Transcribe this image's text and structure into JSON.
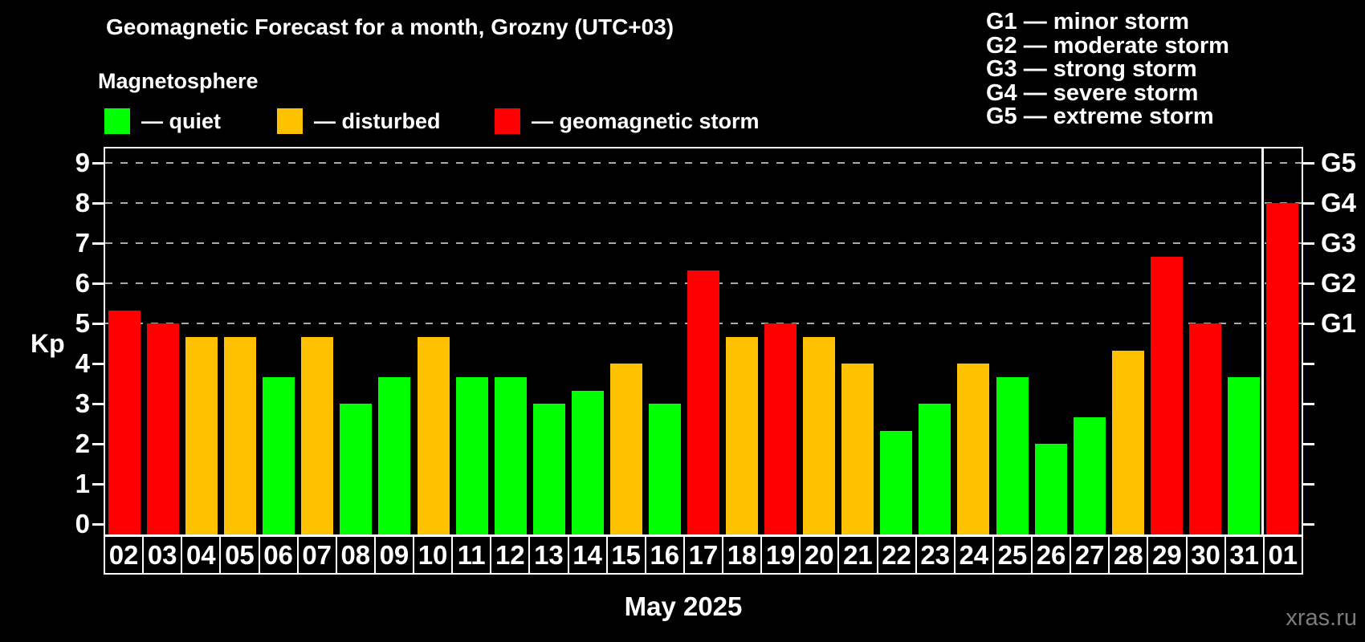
{
  "header": {
    "title": "Geomagnetic Forecast for a month, Grozny (UTC+03)",
    "subtitle": "Magnetosphere"
  },
  "legend": {
    "items": [
      {
        "status": "quiet",
        "label": "— quiet"
      },
      {
        "status": "disturbed",
        "label": "— disturbed"
      },
      {
        "status": "storm",
        "label": "— geomagnetic storm"
      }
    ]
  },
  "g_legend": [
    "G1 — minor storm",
    "G2 — moderate storm",
    "G3 — strong storm",
    "G4 — severe storm",
    "G5 — extreme storm"
  ],
  "axes": {
    "y_title": "Kp",
    "x_title": "May 2025",
    "kp_ticks": [
      "0",
      "1",
      "2",
      "3",
      "4",
      "5",
      "6",
      "7",
      "8",
      "9"
    ],
    "g_labels": [
      {
        "kp": 5,
        "label": "G1"
      },
      {
        "kp": 6,
        "label": "G2"
      },
      {
        "kp": 7,
        "label": "G3"
      },
      {
        "kp": 8,
        "label": "G4"
      },
      {
        "kp": 9,
        "label": "G5"
      }
    ]
  },
  "colors": {
    "quiet": "#00ff00",
    "disturbed": "#ffc000",
    "storm": "#ff0000",
    "grid": "#aaaaaa",
    "frame": "#ffffff",
    "background": "#000000",
    "watermark_text": "#7d7d7d"
  },
  "watermark": "xras.ru",
  "chart_data": {
    "type": "bar",
    "title": "Geomagnetic Forecast for a month, Grozny (UTC+03)",
    "xlabel": "May 2025",
    "ylabel": "Kp",
    "ylim": [
      0,
      9
    ],
    "grid_kp": [
      5,
      6,
      7,
      8,
      9
    ],
    "categories": [
      "02",
      "03",
      "04",
      "05",
      "06",
      "07",
      "08",
      "09",
      "10",
      "11",
      "12",
      "13",
      "14",
      "15",
      "16",
      "17",
      "18",
      "19",
      "20",
      "21",
      "22",
      "23",
      "24",
      "25",
      "26",
      "27",
      "28",
      "29",
      "30",
      "31",
      "01"
    ],
    "values": [
      5.33,
      5.0,
      4.67,
      4.67,
      3.67,
      4.67,
      3.0,
      3.67,
      4.67,
      3.67,
      3.67,
      3.0,
      3.33,
      4.0,
      3.0,
      6.33,
      4.67,
      5.0,
      4.67,
      4.0,
      2.33,
      3.0,
      4.0,
      3.67,
      2.0,
      2.67,
      4.33,
      6.67,
      5.0,
      3.67,
      8.0
    ],
    "status": [
      "storm",
      "storm",
      "disturbed",
      "disturbed",
      "quiet",
      "disturbed",
      "quiet",
      "quiet",
      "disturbed",
      "quiet",
      "quiet",
      "quiet",
      "quiet",
      "disturbed",
      "quiet",
      "storm",
      "disturbed",
      "storm",
      "disturbed",
      "disturbed",
      "quiet",
      "quiet",
      "disturbed",
      "quiet",
      "quiet",
      "quiet",
      "disturbed",
      "storm",
      "storm",
      "quiet",
      "storm"
    ],
    "month_separator_after_index": 29
  }
}
